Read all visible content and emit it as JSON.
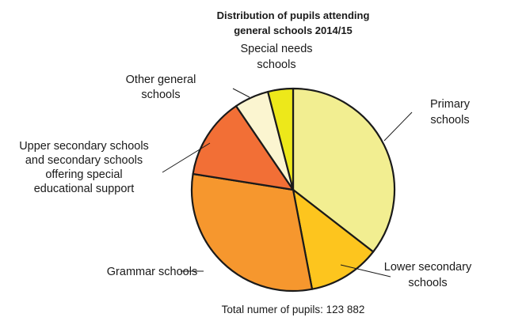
{
  "chart_data": {
    "type": "pie",
    "title_lines": [
      "Distribution of pupils attending",
      "general schools 2014/15"
    ],
    "footnote": "Total numer of pupils: 123 882",
    "start_angle_deg": 0,
    "direction": "clockwise",
    "slices": [
      {
        "label_lines": [
          "Primary",
          "schools"
        ],
        "value": 35.5,
        "color": "#f2ee91"
      },
      {
        "label_lines": [
          "Lower secondary",
          "schools"
        ],
        "value": 11.5,
        "color": "#fdc51e"
      },
      {
        "label_lines": [
          "Grammar schools"
        ],
        "value": 30.5,
        "color": "#f6972e"
      },
      {
        "label_lines": [
          "Upper secondary schools",
          "and secondary schools",
          "offering special",
          "educational support"
        ],
        "value": 13.0,
        "color": "#f26f36"
      },
      {
        "label_lines": [
          "Other general",
          "schools"
        ],
        "value": 5.5,
        "color": "#fbf5d0"
      },
      {
        "label_lines": [
          "Special needs",
          "schools"
        ],
        "value": 4.0,
        "color": "#ede81a"
      }
    ]
  }
}
